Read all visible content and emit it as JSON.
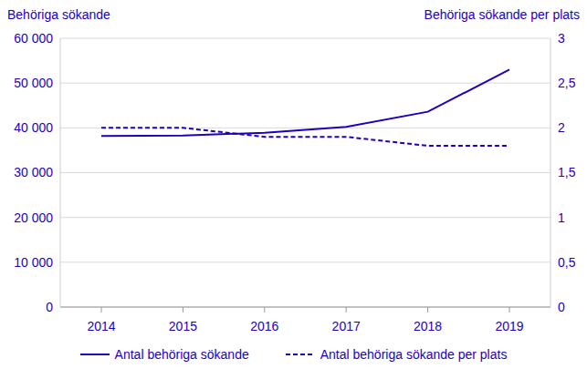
{
  "chart_data": {
    "type": "line",
    "y_label": "Behöriga sökande",
    "y2_label": "Behöriga sökande per plats",
    "categories": [
      "2014",
      "2015",
      "2016",
      "2017",
      "2018",
      "2019"
    ],
    "series": [
      {
        "name": "Antal behöriga sökande",
        "color": "#1e00be",
        "line_style": "solid",
        "values": [
          38200,
          38300,
          38900,
          40200,
          43600,
          53000
        ]
      },
      {
        "name": "Antal behöriga sökande per plats",
        "color": "#1e00be",
        "line_style": "dashed",
        "axis": "y2",
        "values": [
          2.0,
          2.0,
          1.9,
          1.9,
          1.8,
          1.8
        ]
      }
    ],
    "ylim": [
      0,
      60000
    ],
    "yticks": [
      0,
      {
        "value": 10000,
        "label": "10 000"
      },
      {
        "value": 20000,
        "label": "20 000"
      },
      {
        "value": 30000,
        "label": "30 000"
      },
      {
        "value": 40000,
        "label": "40 000"
      },
      {
        "value": 50000,
        "label": "50 000"
      },
      {
        "value": 60000,
        "label": "60 000"
      }
    ],
    "y2lim": [
      0,
      3
    ],
    "y2ticks": [
      0,
      {
        "value": 0.5,
        "label": "0,5"
      },
      1,
      {
        "value": 1.5,
        "label": "1,5"
      },
      2,
      {
        "value": 2.5,
        "label": "2,5"
      },
      3
    ],
    "grid": true,
    "legend": "bottom"
  }
}
